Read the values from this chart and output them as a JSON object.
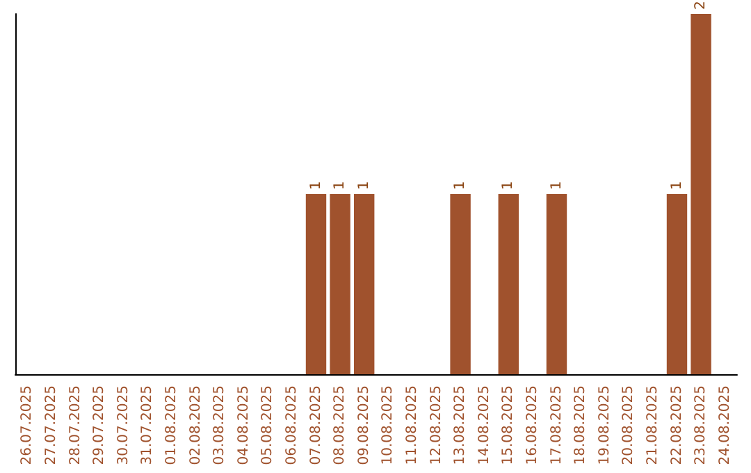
{
  "chart_data": {
    "type": "bar",
    "categories": [
      "26.07.2025",
      "27.07.2025",
      "28.07.2025",
      "29.07.2025",
      "30.07.2025",
      "31.07.2025",
      "01.08.2025",
      "02.08.2025",
      "03.08.2025",
      "04.08.2025",
      "05.08.2025",
      "06.08.2025",
      "07.08.2025",
      "08.08.2025",
      "09.08.2025",
      "10.08.2025",
      "11.08.2025",
      "12.08.2025",
      "13.08.2025",
      "14.08.2025",
      "15.08.2025",
      "16.08.2025",
      "17.08.2025",
      "18.08.2025",
      "19.08.2025",
      "20.08.2025",
      "21.08.2025",
      "22.08.2025",
      "23.08.2025",
      "24.08.2025"
    ],
    "values": [
      null,
      null,
      null,
      null,
      null,
      null,
      null,
      null,
      null,
      null,
      null,
      null,
      1,
      1,
      1,
      null,
      null,
      null,
      1,
      null,
      1,
      null,
      1,
      null,
      null,
      null,
      null,
      1,
      2,
      null
    ],
    "data_labels": true,
    "color": "#a0522d",
    "tick_labels": "x"
  }
}
